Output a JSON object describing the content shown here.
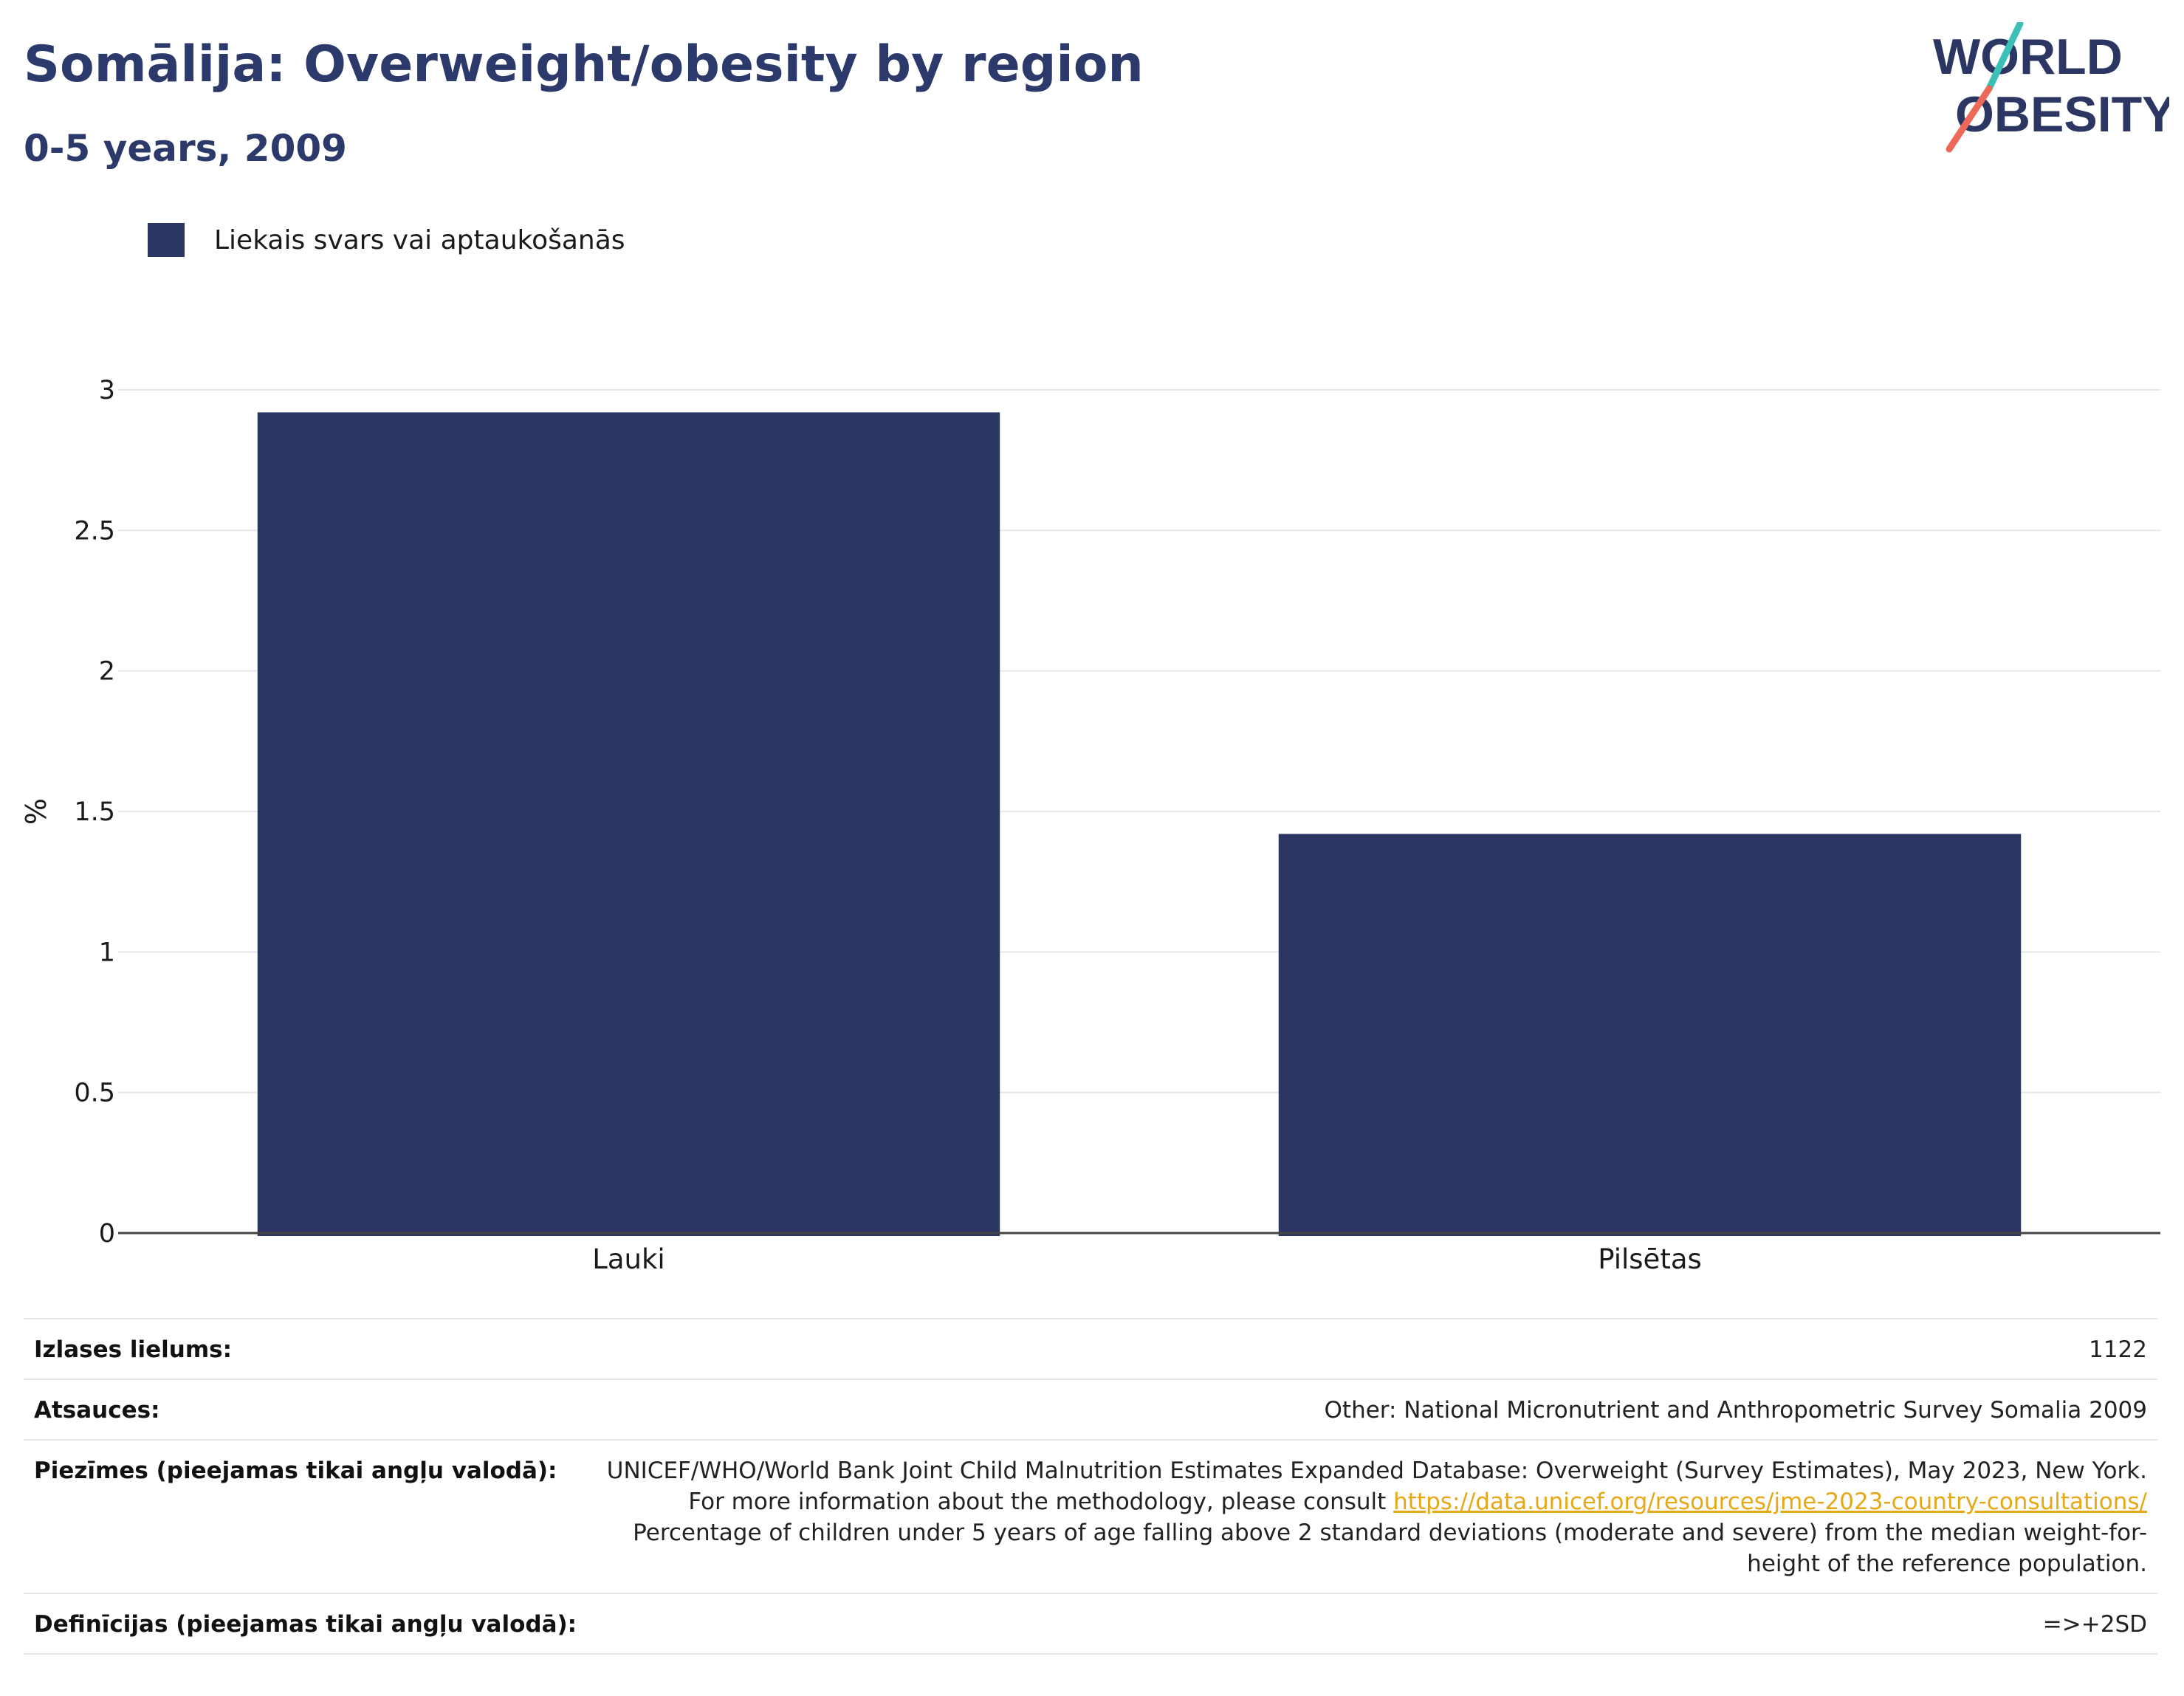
{
  "title": "Somālija: Overweight/obesity by region",
  "subtitle": "0-5 years, 2009",
  "logo": {
    "line1": "WORLD",
    "line2": "OBESITY"
  },
  "legend": {
    "label": "Liekais svars vai aptaukošanās",
    "color": "#2b3663"
  },
  "chart_data": {
    "type": "bar",
    "categories": [
      "Lauki",
      "Pilsētas"
    ],
    "series": [
      {
        "name": "Liekais svars vai aptaukošanās",
        "values": [
          2.92,
          1.42
        ]
      }
    ],
    "ylabel": "%",
    "ylim": [
      0,
      3
    ],
    "yticks": [
      0,
      0.5,
      1,
      1.5,
      2,
      2.5,
      3
    ],
    "ytick_labels": [
      "0",
      "0.5",
      "1",
      "1.5",
      "2",
      "2.5",
      "3"
    ],
    "grid": true,
    "bar_color": "#2b3663"
  },
  "meta": {
    "sample": {
      "label": "Izlases lielums:",
      "value": "1122"
    },
    "sources": {
      "label": "Atsauces:",
      "value": "Other: National Micronutrient and Anthropometric Survey Somalia 2009"
    },
    "notes": {
      "label": "Piezīmes (pieejamas tikai angļu valodā):",
      "text_before": "UNICEF/WHO/World Bank Joint Child Malnutrition Estimates Expanded Database: Overweight (Survey Estimates), May 2023, New York. For more information about the methodology, please consult",
      "link": "https://data.unicef.org/resources/jme-2023-country-consultations/",
      "text_after": "Percentage of children under 5 years of age falling above 2 standard deviations (moderate and severe) from the median weight-for-height of the reference population."
    },
    "definitions": {
      "label": "Definīcijas (pieejamas tikai angļu valodā):",
      "value": "=>+2SD"
    }
  }
}
